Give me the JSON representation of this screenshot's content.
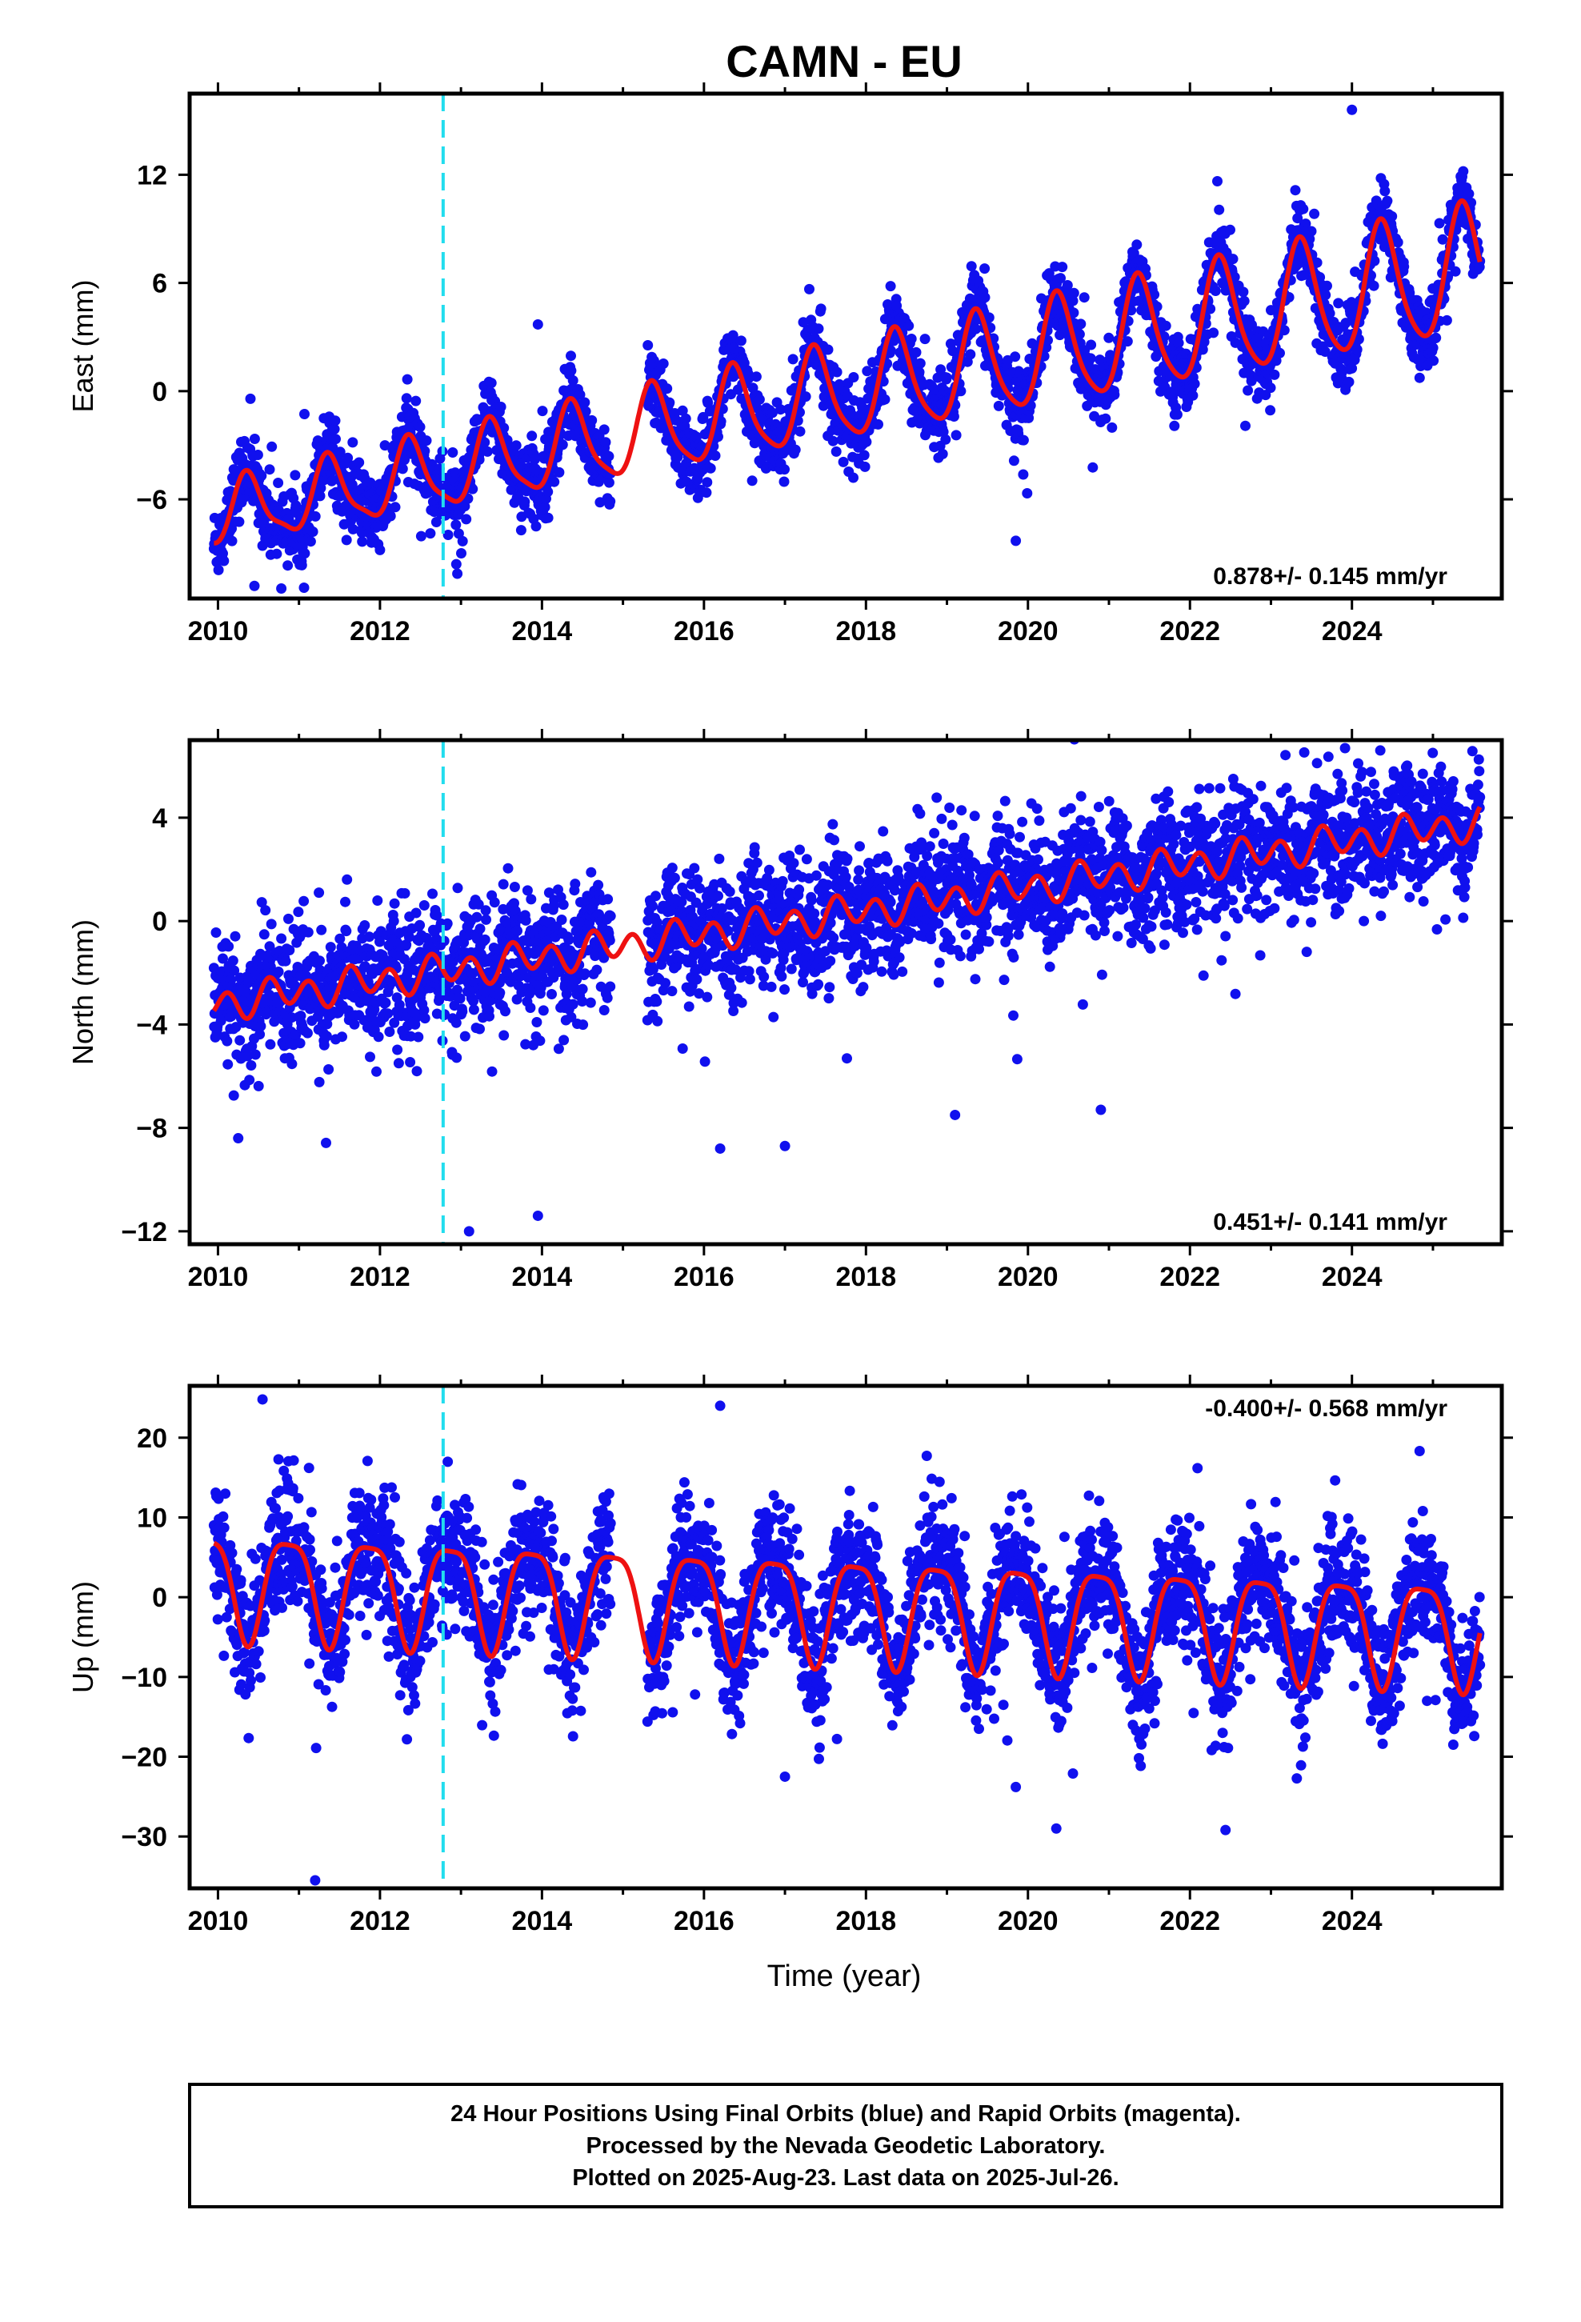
{
  "title": "CAMN - EU",
  "xlabel": "Time (year)",
  "footer": {
    "line1": "24 Hour Positions Using Final Orbits (blue) and Rapid Orbits (magenta).",
    "line2": "Processed by the Nevada Geodetic Laboratory.",
    "line3": "Plotted on 2025-Aug-23. Last data on 2025-Jul-26."
  },
  "colors": {
    "data": "#1010ee",
    "model": "#ee1111",
    "event": "#22ddee",
    "frame": "#000000"
  },
  "chart_data": [
    {
      "type": "scatter",
      "ylabel": "East (mm)",
      "rate_label": "0.878+/- 0.145 mm/yr",
      "rate_position": "bottom-right",
      "xlim": [
        2009.65,
        2025.85
      ],
      "ylim": [
        -11.5,
        16.5
      ],
      "xticks": [
        2010,
        2012,
        2014,
        2016,
        2018,
        2020,
        2022,
        2024
      ],
      "yticks": [
        -6,
        0,
        6,
        12
      ],
      "event_line_x": 2012.78,
      "data_range": [
        2009.95,
        2025.58
      ],
      "gap": [
        2014.85,
        2015.3
      ],
      "model": {
        "offset": -6.9,
        "rate": 0.878,
        "amp_annual": 1.7,
        "phase_annual": 0.12,
        "amp_semi": 0.5,
        "phase_semi": 0.2,
        "amp_ramp": 0.07
      },
      "scatter": {
        "noise": 1.0,
        "outlier_rate": 0.02
      },
      "outliers": [
        {
          "x": 2010.45,
          "y": -10.8
        },
        {
          "x": 2019.85,
          "y": -8.3
        },
        {
          "x": 2024.0,
          "y": 15.6
        },
        {
          "x": 2013.95,
          "y": 3.7
        }
      ]
    },
    {
      "type": "scatter",
      "ylabel": "North (mm)",
      "rate_label": "0.451+/- 0.141 mm/yr",
      "rate_position": "bottom-right",
      "xlim": [
        2009.65,
        2025.85
      ],
      "ylim": [
        -12.5,
        7.0
      ],
      "xticks": [
        2010,
        2012,
        2014,
        2016,
        2018,
        2020,
        2022,
        2024
      ],
      "yticks": [
        -12,
        -8,
        -4,
        0,
        4
      ],
      "event_line_x": 2012.78,
      "data_range": [
        2009.95,
        2025.58
      ],
      "gap": [
        2014.85,
        2015.3
      ],
      "model": {
        "offset": -3.2,
        "rate": 0.451,
        "amp_annual": 0.25,
        "phase_annual": 0.5,
        "amp_semi": 0.55,
        "phase_semi": 0.0,
        "amp_ramp": 0.0
      },
      "scatter": {
        "noise": 1.2,
        "outlier_rate": 0.02
      },
      "outliers": [
        {
          "x": 2013.1,
          "y": -12.0
        },
        {
          "x": 2013.95,
          "y": -11.4
        },
        {
          "x": 2016.2,
          "y": -8.8
        },
        {
          "x": 2017.0,
          "y": -8.7
        },
        {
          "x": 2019.1,
          "y": -7.5
        },
        {
          "x": 2020.9,
          "y": -7.3
        },
        {
          "x": 2010.25,
          "y": -8.4
        },
        {
          "x": 2024.35,
          "y": 6.6
        }
      ]
    },
    {
      "type": "scatter",
      "ylabel": "Up (mm)",
      "rate_label": "-0.400+/- 0.568 mm/yr",
      "rate_position": "top-right",
      "xlim": [
        2009.65,
        2025.85
      ],
      "ylim": [
        -36.5,
        26.5
      ],
      "xticks": [
        2010,
        2012,
        2014,
        2016,
        2018,
        2020,
        2022,
        2024
      ],
      "yticks": [
        -30,
        -20,
        -10,
        0,
        10,
        20
      ],
      "event_line_x": 2012.78,
      "data_range": [
        2009.95,
        2025.58
      ],
      "gap": [
        2014.85,
        2015.3
      ],
      "model": {
        "offset": 2.0,
        "rate": -0.4,
        "amp_annual": 6.5,
        "phase_annual": 0.62,
        "amp_semi": 1.6,
        "phase_semi": 0.0,
        "amp_ramp": 0.0
      },
      "scatter": {
        "noise": 4.0,
        "outlier_rate": 0.02
      },
      "outliers": [
        {
          "x": 2011.2,
          "y": -35.5
        },
        {
          "x": 2019.85,
          "y": -23.8
        },
        {
          "x": 2020.35,
          "y": -29.0
        },
        {
          "x": 2016.2,
          "y": 24.0
        },
        {
          "x": 2010.55,
          "y": 24.8
        },
        {
          "x": 2017.0,
          "y": -22.5
        }
      ]
    }
  ]
}
